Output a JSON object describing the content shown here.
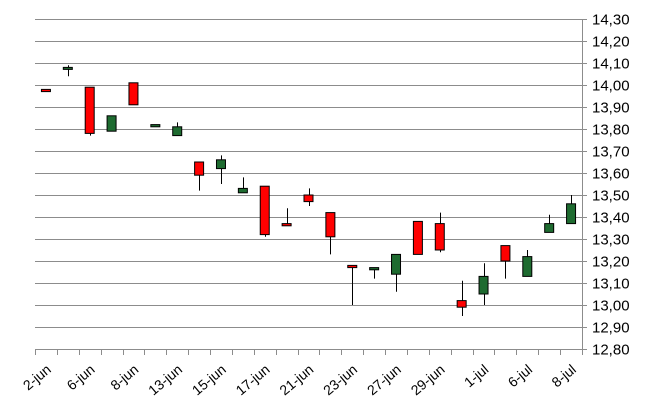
{
  "chart_data": {
    "type": "candlestick",
    "title": "",
    "xlabel": "",
    "ylabel": "",
    "ylim": [
      12.8,
      14.3
    ],
    "ystep": 0.1,
    "y_tick_labels": [
      "12,80",
      "12,90",
      "13,00",
      "13,10",
      "13,20",
      "13,30",
      "13,40",
      "13,50",
      "13,60",
      "13,70",
      "13,80",
      "13,90",
      "14,00",
      "14,10",
      "14,20",
      "14,30"
    ],
    "x_tick_labels": [
      "2-jun",
      "6-jun",
      "8-jun",
      "13-jun",
      "15-jun",
      "17-jun",
      "21-jun",
      "23-jun",
      "27-jun",
      "29-jun",
      "1-jul",
      "6-jul",
      "8-jul"
    ],
    "grid": true,
    "y_axis_position": "right",
    "colors": {
      "up": "#1e6b30",
      "down": "#ff0000",
      "wick": "#000000",
      "grid": "#8c8c8c"
    },
    "candles": [
      {
        "open": 13.98,
        "high": 13.98,
        "low": 13.97,
        "close": 13.97
      },
      {
        "open": 14.08,
        "high": 14.09,
        "low": 14.04,
        "close": 14.08
      },
      {
        "open": 13.99,
        "high": 13.99,
        "low": 13.77,
        "close": 13.78
      },
      {
        "open": 13.79,
        "high": 13.86,
        "low": 13.79,
        "close": 13.86
      },
      {
        "open": 14.01,
        "high": 14.01,
        "low": 13.91,
        "close": 13.91
      },
      {
        "open": 13.81,
        "high": 13.82,
        "low": 13.81,
        "close": 13.82
      },
      {
        "open": 13.77,
        "high": 13.83,
        "low": 13.77,
        "close": 13.81
      },
      {
        "open": 13.65,
        "high": 13.65,
        "low": 13.52,
        "close": 13.59
      },
      {
        "open": 13.62,
        "high": 13.68,
        "low": 13.55,
        "close": 13.66
      },
      {
        "open": 13.51,
        "high": 13.58,
        "low": 13.51,
        "close": 13.53
      },
      {
        "open": 13.54,
        "high": 13.54,
        "low": 13.31,
        "close": 13.32
      },
      {
        "open": 13.37,
        "high": 13.44,
        "low": 13.36,
        "close": 13.36
      },
      {
        "open": 13.5,
        "high": 13.53,
        "low": 13.45,
        "close": 13.47
      },
      {
        "open": 13.42,
        "high": 13.42,
        "low": 13.23,
        "close": 13.31
      },
      {
        "open": 13.18,
        "high": 13.18,
        "low": 13.0,
        "close": 13.17
      },
      {
        "open": 13.16,
        "high": 13.17,
        "low": 13.12,
        "close": 13.17
      },
      {
        "open": 13.14,
        "high": 13.23,
        "low": 13.06,
        "close": 13.23
      },
      {
        "open": 13.38,
        "high": 13.38,
        "low": 13.23,
        "close": 13.23
      },
      {
        "open": 13.37,
        "high": 13.42,
        "low": 13.24,
        "close": 13.25
      },
      {
        "open": 13.02,
        "high": 13.11,
        "low": 12.95,
        "close": 12.99
      },
      {
        "open": 13.05,
        "high": 13.19,
        "low": 13.0,
        "close": 13.13
      },
      {
        "open": 13.27,
        "high": 13.27,
        "low": 13.12,
        "close": 13.2
      },
      {
        "open": 13.13,
        "high": 13.25,
        "low": 13.13,
        "close": 13.22
      },
      {
        "open": 13.33,
        "high": 13.41,
        "low": 13.33,
        "close": 13.37
      },
      {
        "open": 13.37,
        "high": 13.5,
        "low": 13.37,
        "close": 13.46
      }
    ]
  }
}
